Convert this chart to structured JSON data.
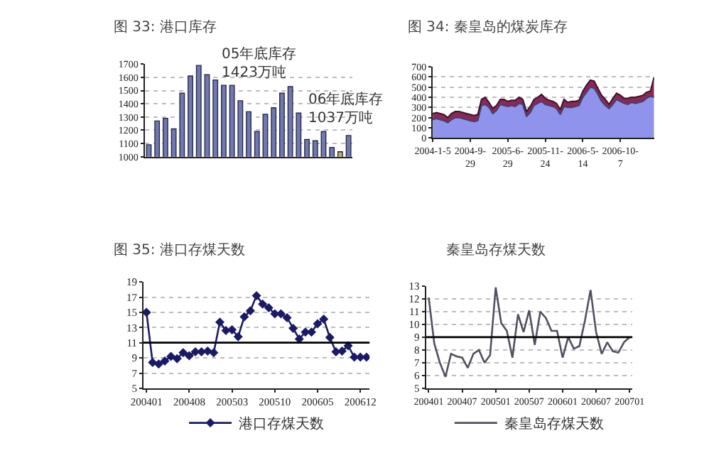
{
  "chart_data": [
    {
      "type": "bar",
      "title": "图 33: 港口库存",
      "categories": [
        null,
        null,
        null,
        null,
        null,
        null,
        null,
        null,
        null,
        null,
        null,
        null,
        null,
        null,
        null,
        null,
        null,
        null,
        null,
        null,
        null,
        null,
        null,
        null,
        null
      ],
      "values": [
        1090,
        1270,
        1290,
        1210,
        1480,
        1610,
        1690,
        1620,
        1580,
        1540,
        1540,
        1423,
        1340,
        1190,
        1320,
        1370,
        1480,
        1530,
        1330,
        1130,
        1120,
        1190,
        1070,
        1037,
        1160
      ],
      "colors": [
        "#7179ae",
        "#7179ae",
        "#7179ae",
        "#7179ae",
        "#7179ae",
        "#7179ae",
        "#7179ae",
        "#7179ae",
        "#7179ae",
        "#7179ae",
        "#7179ae",
        "#7179ae",
        "#7179ae",
        "#7179ae",
        "#7179ae",
        "#7179ae",
        "#7179ae",
        "#7179ae",
        "#7179ae",
        "#7179ae",
        "#7179ae",
        "#7179ae",
        "#7179ae",
        "#c4b05a",
        "#7179ae"
      ],
      "ylim": [
        1000,
        1700
      ],
      "yticks": [
        1000,
        1100,
        1200,
        1300,
        1400,
        1500,
        1600,
        1700
      ],
      "grid": "y",
      "annotations": [
        "05年底库存\n1423万吨",
        "06年底库存\n1037万吨"
      ]
    },
    {
      "type": "area",
      "stacked": true,
      "title": "图 34: 秦皇岛的煤炭库存",
      "categories": [
        "2004-1-5",
        null,
        null,
        null,
        null,
        null,
        null,
        null,
        null,
        null,
        "2004-9-29",
        null,
        null,
        null,
        null,
        null,
        null,
        null,
        null,
        null,
        "2005-6-29",
        null,
        null,
        null,
        null,
        null,
        null,
        null,
        null,
        null,
        "2005-11-24",
        null,
        null,
        null,
        null,
        null,
        null,
        null,
        null,
        null,
        "2006-5-14",
        null,
        null,
        null,
        null,
        null,
        null,
        null,
        null,
        null,
        "2006-10-7",
        null,
        null,
        null,
        null,
        null,
        null,
        null,
        null,
        null
      ],
      "series": [
        {
          "color": "#8f93ec",
          "values": [
            180,
            190,
            180,
            170,
            150,
            180,
            200,
            200,
            190,
            180,
            170,
            160,
            170,
            320,
            330,
            300,
            240,
            270,
            330,
            320,
            310,
            320,
            310,
            340,
            330,
            210,
            250,
            320,
            340,
            360,
            330,
            320,
            310,
            290,
            230,
            310,
            300,
            300,
            310,
            320,
            400,
            450,
            500,
            490,
            430,
            360,
            320,
            290,
            330,
            380,
            360,
            340,
            330,
            350,
            340,
            350,
            360,
            390,
            410,
            400
          ]
        },
        {
          "color": "#8a2858",
          "values": [
            60,
            60,
            60,
            60,
            50,
            60,
            60,
            60,
            60,
            60,
            60,
            60,
            60,
            60,
            70,
            50,
            50,
            50,
            50,
            60,
            50,
            50,
            60,
            60,
            50,
            50,
            60,
            60,
            60,
            70,
            60,
            50,
            50,
            50,
            50,
            70,
            50,
            60,
            50,
            50,
            60,
            70,
            70,
            70,
            60,
            60,
            60,
            40,
            60,
            60,
            60,
            50,
            60,
            50,
            60,
            60,
            60,
            60,
            50,
            200
          ]
        }
      ],
      "ylim": [
        0,
        700
      ],
      "yticks": [
        0,
        100,
        200,
        300,
        400,
        500,
        600,
        700
      ],
      "grid": "y"
    },
    {
      "type": "line",
      "title": "图 35: 港口存煤天数",
      "categories": [
        "200401",
        null,
        null,
        null,
        null,
        null,
        null,
        "200408",
        null,
        null,
        null,
        null,
        null,
        null,
        "200503",
        null,
        null,
        null,
        null,
        null,
        null,
        "200510",
        null,
        null,
        null,
        null,
        null,
        null,
        "200605",
        null,
        null,
        null,
        null,
        null,
        null,
        "200612",
        null
      ],
      "series": [
        {
          "name": "港口存煤天数",
          "color": "#1b1a66",
          "values": [
            15.0,
            8.4,
            8.2,
            8.6,
            9.2,
            8.9,
            9.7,
            9.3,
            9.8,
            9.8,
            9.9,
            9.7,
            13.7,
            12.6,
            12.7,
            11.8,
            14.4,
            15.2,
            17.2,
            16.1,
            15.6,
            14.8,
            14.8,
            14.3,
            12.9,
            11.5,
            12.4,
            12.4,
            13.5,
            14.1,
            11.7,
            9.8,
            9.9,
            10.6,
            9.1,
            9.1,
            9.1
          ]
        }
      ],
      "marker": "diamond",
      "ylim": [
        5,
        19
      ],
      "yticks": [
        5,
        7,
        9,
        11,
        13,
        15,
        17,
        19
      ],
      "grid": "y",
      "ref_lines": [
        {
          "axis": "y",
          "value": 11,
          "color": "#000000"
        }
      ],
      "legend": "bottom"
    },
    {
      "type": "line",
      "title": "秦皇岛存煤天数",
      "categories": [
        "200401",
        null,
        null,
        null,
        null,
        null,
        "200407",
        null,
        null,
        null,
        null,
        null,
        "200501",
        null,
        null,
        null,
        null,
        null,
        "200507",
        null,
        null,
        null,
        null,
        null,
        "200601",
        null,
        null,
        null,
        null,
        null,
        "200607",
        null,
        null,
        null,
        null,
        null,
        "200701"
      ],
      "series": [
        {
          "name": "秦皇岛存煤天数",
          "color": "#505060",
          "values": [
            12.1,
            8.5,
            7.0,
            5.9,
            7.7,
            7.5,
            7.4,
            6.6,
            7.7,
            8.0,
            7.0,
            7.6,
            12.9,
            10.1,
            9.5,
            7.4,
            10.8,
            9.4,
            11.1,
            8.4,
            11.0,
            10.5,
            9.5,
            9.5,
            7.4,
            9.0,
            8.1,
            8.3,
            10.3,
            12.7,
            9.4,
            7.7,
            8.6,
            7.9,
            7.8,
            8.6,
            9.0
          ]
        }
      ],
      "ylim": [
        5,
        13
      ],
      "yticks": [
        5,
        6,
        7,
        8,
        9,
        10,
        11,
        12,
        13
      ],
      "grid": "y",
      "ref_lines": [
        {
          "axis": "y",
          "value": 9,
          "color": "#000000"
        }
      ],
      "legend": "bottom"
    }
  ]
}
